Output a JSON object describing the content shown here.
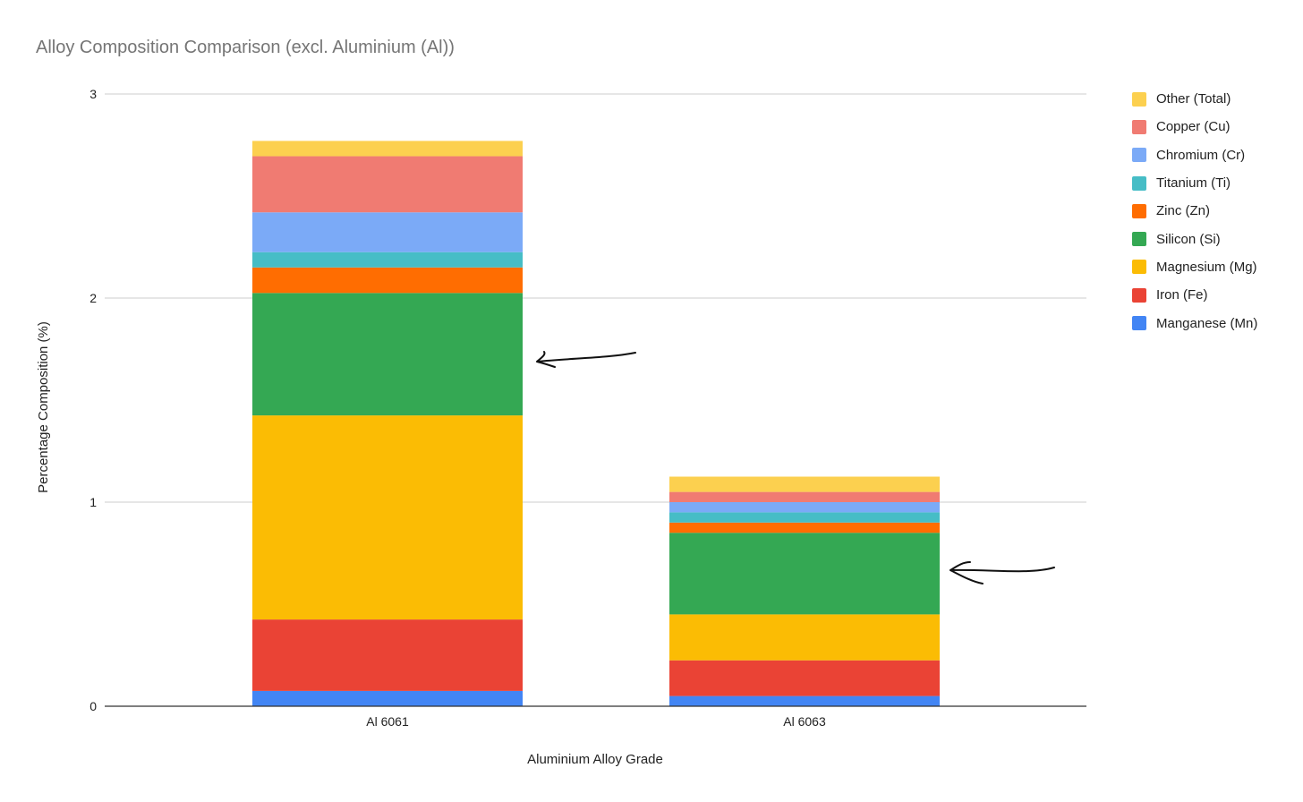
{
  "chart_data": {
    "type": "bar",
    "stacked": true,
    "title": "Alloy Composition Comparison (excl. Aluminium (Al))",
    "xlabel": "Aluminium Alloy Grade",
    "ylabel": "Percentage Composition (%)",
    "ylim": [
      0,
      3
    ],
    "yticks": [
      0,
      1,
      2,
      3
    ],
    "grid": true,
    "legend_position": "right",
    "categories": [
      "Al 6061",
      "Al 6063"
    ],
    "series": [
      {
        "name": "Manganese (Mn)",
        "color": "#4285F4",
        "values": [
          0.075,
          0.05
        ]
      },
      {
        "name": "Iron (Fe)",
        "color": "#EA4335",
        "values": [
          0.35,
          0.175
        ]
      },
      {
        "name": "Magnesium (Mg)",
        "color": "#FBBC04",
        "values": [
          1.0,
          0.225
        ]
      },
      {
        "name": "Silicon (Si)",
        "color": "#34A853",
        "values": [
          0.6,
          0.4
        ]
      },
      {
        "name": "Zinc (Zn)",
        "color": "#FF6D01",
        "values": [
          0.125,
          0.05
        ]
      },
      {
        "name": "Titanium (Ti)",
        "color": "#46BDC6",
        "values": [
          0.075,
          0.05
        ]
      },
      {
        "name": "Chromium (Cr)",
        "color": "#7BAAF7",
        "values": [
          0.195,
          0.05
        ]
      },
      {
        "name": "Copper (Cu)",
        "color": "#F07B72",
        "values": [
          0.275,
          0.05
        ]
      },
      {
        "name": "Other (Total)",
        "color": "#FCD04F",
        "values": [
          0.075,
          0.075
        ]
      }
    ],
    "annotations": [
      "hand-drawn-arrow",
      "hand-drawn-arrow"
    ]
  }
}
